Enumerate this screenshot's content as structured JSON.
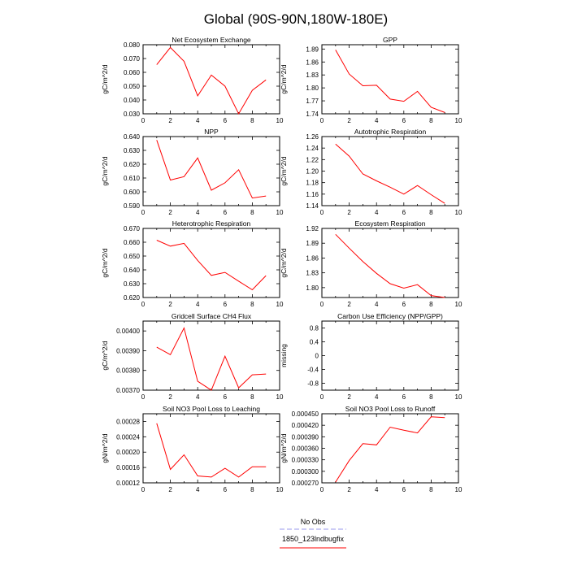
{
  "figure": {
    "title": "Global (90S-90N,180W-180E)",
    "legend": [
      {
        "label": "No Obs",
        "color": "#9999ee",
        "dashed": true
      },
      {
        "label": "1850_123lndbugfix",
        "color": "#ff0000",
        "dashed": false
      }
    ]
  },
  "chart_data": [
    {
      "type": "line",
      "title": "Net Ecosystem Exchange",
      "ylabel": "gC/m^2/d",
      "xlim": [
        0,
        10
      ],
      "ylim": [
        0.03,
        0.08
      ],
      "xticks": [
        "0",
        "2",
        "4",
        "6",
        "8",
        "10"
      ],
      "yticks": [
        0.03,
        0.04,
        0.05,
        0.06,
        0.07,
        0.08
      ],
      "yticklabels": [
        "0.030",
        "0.040",
        "0.050",
        "0.060",
        "0.070",
        "0.080"
      ],
      "series": [
        {
          "x": [
            1,
            2,
            3,
            4,
            5,
            6,
            7,
            8,
            9
          ],
          "values": [
            0.0655,
            0.078,
            0.068,
            0.043,
            0.058,
            0.05,
            0.03,
            0.047,
            0.0545
          ],
          "color": "#ff0000"
        }
      ]
    },
    {
      "type": "line",
      "title": "GPP",
      "ylabel": "gC/m^2/d",
      "xlim": [
        0,
        10
      ],
      "ylim": [
        1.74,
        1.9
      ],
      "xticks": [
        "0",
        "2",
        "4",
        "6",
        "8",
        "10"
      ],
      "yticks": [
        1.74,
        1.77,
        1.8,
        1.83,
        1.86,
        1.89
      ],
      "yticklabels": [
        "1.74",
        "1.77",
        "1.80",
        "1.83",
        "1.86",
        "1.89"
      ],
      "series": [
        {
          "x": [
            1,
            2,
            3,
            4,
            5,
            6,
            7,
            8,
            9
          ],
          "values": [
            1.888,
            1.832,
            1.805,
            1.806,
            1.774,
            1.769,
            1.792,
            1.755,
            1.743
          ],
          "color": "#ff0000"
        }
      ]
    },
    {
      "type": "line",
      "title": "NPP",
      "ylabel": "gC/m^2/d",
      "xlim": [
        0,
        10
      ],
      "ylim": [
        0.59,
        0.64
      ],
      "xticks": [
        "0",
        "2",
        "4",
        "6",
        "8",
        "10"
      ],
      "yticks": [
        0.59,
        0.6,
        0.61,
        0.62,
        0.63,
        0.64
      ],
      "yticklabels": [
        "0.590",
        "0.600",
        "0.610",
        "0.620",
        "0.630",
        "0.640"
      ],
      "series": [
        {
          "x": [
            1,
            2,
            3,
            4,
            5,
            6,
            7,
            8,
            9
          ],
          "values": [
            0.6375,
            0.6085,
            0.611,
            0.6245,
            0.6012,
            0.6065,
            0.616,
            0.5955,
            0.597
          ],
          "color": "#ff0000"
        }
      ]
    },
    {
      "type": "line",
      "title": "Autotrophic Respiration",
      "ylabel": "gC/m^2/d",
      "xlim": [
        0,
        10
      ],
      "ylim": [
        1.14,
        1.26
      ],
      "xticks": [
        "0",
        "2",
        "4",
        "6",
        "8",
        "10"
      ],
      "yticks": [
        1.14,
        1.16,
        1.18,
        1.2,
        1.22,
        1.24,
        1.26
      ],
      "yticklabels": [
        "1.14",
        "1.16",
        "1.18",
        "1.20",
        "1.22",
        "1.24",
        "1.26"
      ],
      "series": [
        {
          "x": [
            1,
            2,
            3,
            4,
            5,
            6,
            7,
            8,
            9
          ],
          "values": [
            1.247,
            1.226,
            1.195,
            1.183,
            1.172,
            1.16,
            1.175,
            1.159,
            1.144
          ],
          "color": "#ff0000"
        }
      ]
    },
    {
      "type": "line",
      "title": "Heterotrophic Respiration",
      "ylabel": "gC/m^2/d",
      "xlim": [
        0,
        10
      ],
      "ylim": [
        0.62,
        0.67
      ],
      "xticks": [
        "0",
        "2",
        "4",
        "6",
        "8",
        "10"
      ],
      "yticks": [
        0.62,
        0.63,
        0.64,
        0.65,
        0.66,
        0.67
      ],
      "yticklabels": [
        "0.620",
        "0.630",
        "0.640",
        "0.650",
        "0.660",
        "0.670"
      ],
      "series": [
        {
          "x": [
            1,
            2,
            3,
            4,
            5,
            6,
            7,
            8,
            9
          ],
          "values": [
            0.6615,
            0.6572,
            0.6592,
            0.6468,
            0.636,
            0.6382,
            0.6318,
            0.6256,
            0.6358
          ],
          "color": "#ff0000"
        }
      ]
    },
    {
      "type": "line",
      "title": "Ecosystem Respiration",
      "ylabel": "gC/m^2/d",
      "xlim": [
        0,
        10
      ],
      "ylim": [
        1.78,
        1.92
      ],
      "xticks": [
        "0",
        "2",
        "4",
        "6",
        "8",
        "10"
      ],
      "yticks": [
        1.8,
        1.83,
        1.86,
        1.89,
        1.92
      ],
      "yticklabels": [
        "1.80",
        "1.83",
        "1.86",
        "1.89",
        "1.92"
      ],
      "series": [
        {
          "x": [
            1,
            2,
            3,
            4,
            5,
            6,
            7,
            8,
            9
          ],
          "values": [
            1.908,
            1.88,
            1.853,
            1.829,
            1.808,
            1.799,
            1.806,
            1.784,
            1.78
          ],
          "color": "#ff0000"
        }
      ]
    },
    {
      "type": "line",
      "title": "Gridcell Surface CH4 Flux",
      "ylabel": "gC/m^2/d",
      "xlim": [
        0,
        10
      ],
      "ylim": [
        0.0037,
        0.00405
      ],
      "xticks": [
        "0",
        "2",
        "4",
        "6",
        "8",
        "10"
      ],
      "yticks": [
        0.0037,
        0.0038,
        0.0039,
        0.004
      ],
      "yticklabels": [
        "0.00370",
        "0.00380",
        "0.00390",
        "0.00400"
      ],
      "series": [
        {
          "x": [
            1,
            2,
            3,
            4,
            5,
            6,
            7,
            8,
            9
          ],
          "values": [
            0.003918,
            0.00388,
            0.004015,
            0.003745,
            0.0037,
            0.003872,
            0.003712,
            0.003778,
            0.003782
          ],
          "color": "#ff0000"
        }
      ]
    },
    {
      "type": "line",
      "title": "Carbon Use Efficiency (NPP/GPP)",
      "ylabel": "missing",
      "xlim": [
        0,
        10
      ],
      "ylim": [
        -1,
        1
      ],
      "xticks": [
        "0",
        "2",
        "4",
        "6",
        "8",
        "10"
      ],
      "yticks": [
        -0.8,
        -0.4,
        0,
        0.4,
        0.8
      ],
      "yticklabels": [
        "-0.8",
        "-0.4",
        "0",
        "0.4",
        "0.8"
      ],
      "series": []
    },
    {
      "type": "line",
      "title": "Soil NO3 Pool Loss to Leaching",
      "ylabel": "gN/m^2/d",
      "xlim": [
        0,
        10
      ],
      "ylim": [
        0.00012,
        0.0003
      ],
      "xticks": [
        "0",
        "2",
        "4",
        "6",
        "8",
        "10"
      ],
      "yticks": [
        0.00012,
        0.00016,
        0.0002,
        0.00024,
        0.00028
      ],
      "yticklabels": [
        "0.00012",
        "0.00016",
        "0.00020",
        "0.00024",
        "0.00028"
      ],
      "series": [
        {
          "x": [
            1,
            2,
            3,
            4,
            5,
            6,
            7,
            8,
            9
          ],
          "values": [
            0.000275,
            0.000155,
            0.000193,
            0.000138,
            0.000135,
            0.000158,
            0.000135,
            0.000162,
            0.000162
          ],
          "color": "#ff0000"
        }
      ]
    },
    {
      "type": "line",
      "title": "Soil NO3 Pool Loss to Runoff",
      "ylabel": "gN/m^2/d",
      "xlim": [
        0,
        10
      ],
      "ylim": [
        0.00027,
        0.00045
      ],
      "xticks": [
        "0",
        "2",
        "4",
        "6",
        "8",
        "10"
      ],
      "yticks": [
        0.00027,
        0.0003,
        0.00033,
        0.00036,
        0.00039,
        0.00042,
        0.00045
      ],
      "yticklabels": [
        "0.000270",
        "0.000300",
        "0.000330",
        "0.000360",
        "0.000390",
        "0.000420",
        "0.000450"
      ],
      "series": [
        {
          "x": [
            1,
            2,
            3,
            4,
            5,
            6,
            7,
            8,
            9
          ],
          "values": [
            0.000272,
            0.000328,
            0.000372,
            0.000369,
            0.000415,
            0.000407,
            0.0004,
            0.000442,
            0.00044
          ],
          "color": "#ff0000"
        }
      ]
    }
  ]
}
